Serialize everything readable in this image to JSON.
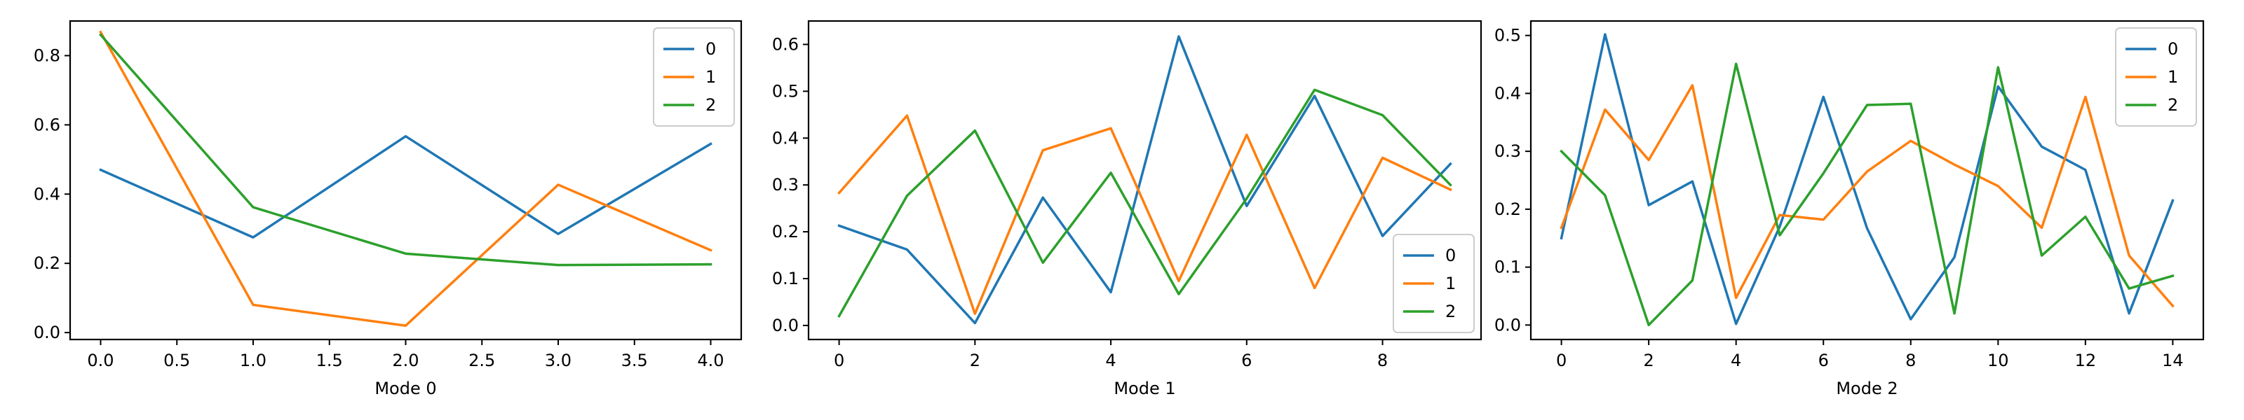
{
  "colors": {
    "series0": "#1f77b4",
    "series1": "#ff7f0e",
    "series2": "#2ca02c"
  },
  "chart_data": [
    {
      "type": "line",
      "xlabel": "Mode 0",
      "ylabel": "",
      "xlim": [
        -0.2,
        4.2
      ],
      "ylim": [
        -0.02,
        0.9
      ],
      "xticks": [
        0.0,
        0.5,
        1.0,
        1.5,
        2.0,
        2.5,
        3.0,
        3.5,
        4.0
      ],
      "xtick_labels": [
        "0.0",
        "0.5",
        "1.0",
        "1.5",
        "2.0",
        "2.5",
        "3.0",
        "3.5",
        "4.0"
      ],
      "yticks": [
        0.0,
        0.2,
        0.4,
        0.6,
        0.8
      ],
      "ytick_labels": [
        "0.0",
        "0.2",
        "0.4",
        "0.6",
        "0.8"
      ],
      "legend_position": "top-right",
      "x": [
        0,
        1,
        2,
        3,
        4
      ],
      "series": [
        {
          "name": "0",
          "color": "#1f77b4",
          "values": [
            0.47,
            0.275,
            0.567,
            0.285,
            0.545
          ]
        },
        {
          "name": "1",
          "color": "#ff7f0e",
          "values": [
            0.868,
            0.08,
            0.02,
            0.427,
            0.238
          ]
        },
        {
          "name": "2",
          "color": "#2ca02c",
          "values": [
            0.86,
            0.362,
            0.228,
            0.195,
            0.197
          ]
        }
      ]
    },
    {
      "type": "line",
      "xlabel": "Mode 1",
      "ylabel": "",
      "xlim": [
        -0.45,
        9.45
      ],
      "ylim": [
        -0.03,
        0.65
      ],
      "xticks": [
        0,
        2,
        4,
        6,
        8
      ],
      "xtick_labels": [
        "0",
        "2",
        "4",
        "6",
        "8"
      ],
      "yticks": [
        0.0,
        0.1,
        0.2,
        0.3,
        0.4,
        0.5,
        0.6
      ],
      "ytick_labels": [
        "0.0",
        "0.1",
        "0.2",
        "0.3",
        "0.4",
        "0.5",
        "0.6"
      ],
      "legend_position": "bottom-right",
      "x": [
        0,
        1,
        2,
        3,
        4,
        5,
        6,
        7,
        8,
        9
      ],
      "series": [
        {
          "name": "0",
          "color": "#1f77b4",
          "values": [
            0.213,
            0.162,
            0.005,
            0.273,
            0.071,
            0.617,
            0.255,
            0.49,
            0.191,
            0.345
          ]
        },
        {
          "name": "1",
          "color": "#ff7f0e",
          "values": [
            0.283,
            0.448,
            0.025,
            0.374,
            0.421,
            0.095,
            0.407,
            0.08,
            0.358,
            0.29
          ]
        },
        {
          "name": "2",
          "color": "#2ca02c",
          "values": [
            0.02,
            0.277,
            0.416,
            0.134,
            0.326,
            0.067,
            0.271,
            0.503,
            0.449,
            0.3
          ]
        }
      ]
    },
    {
      "type": "line",
      "xlabel": "Mode 2",
      "ylabel": "",
      "xlim": [
        -0.7,
        14.7
      ],
      "ylim": [
        -0.025,
        0.525
      ],
      "xticks": [
        0,
        2,
        4,
        6,
        8,
        10,
        12,
        14
      ],
      "xtick_labels": [
        "0",
        "2",
        "4",
        "6",
        "8",
        "10",
        "12",
        "14"
      ],
      "yticks": [
        0.0,
        0.1,
        0.2,
        0.3,
        0.4,
        0.5
      ],
      "ytick_labels": [
        "0.0",
        "0.1",
        "0.2",
        "0.3",
        "0.4",
        "0.5"
      ],
      "legend_position": "top-right",
      "x": [
        0,
        1,
        2,
        3,
        4,
        5,
        6,
        7,
        8,
        9,
        10,
        11,
        12,
        13,
        14
      ],
      "series": [
        {
          "name": "0",
          "color": "#1f77b4",
          "values": [
            0.15,
            0.502,
            0.207,
            0.248,
            0.002,
            0.17,
            0.394,
            0.167,
            0.01,
            0.117,
            0.412,
            0.308,
            0.268,
            0.02,
            0.215
          ]
        },
        {
          "name": "1",
          "color": "#ff7f0e",
          "values": [
            0.168,
            0.372,
            0.285,
            0.414,
            0.047,
            0.19,
            0.182,
            0.265,
            0.318,
            0.277,
            0.24,
            0.168,
            0.394,
            0.12,
            0.033
          ]
        },
        {
          "name": "2",
          "color": "#2ca02c",
          "values": [
            0.3,
            0.224,
            0.0,
            0.077,
            0.451,
            0.155,
            0.262,
            0.38,
            0.382,
            0.02,
            0.445,
            0.12,
            0.187,
            0.063,
            0.085
          ]
        }
      ]
    }
  ]
}
